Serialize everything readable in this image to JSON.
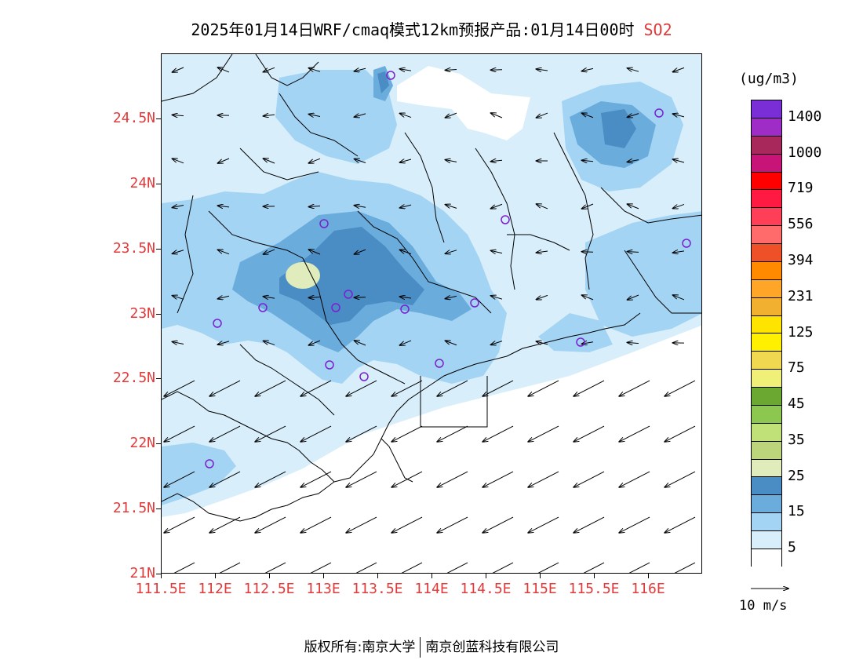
{
  "title": {
    "main": "2025年01月14日WRF/cmaq模式12km预报产品:01月14日00时",
    "species": "SO2",
    "species_color": "#e03a3a"
  },
  "map": {
    "lat_labels": [
      "24.5N",
      "24N",
      "23.5N",
      "23N",
      "22.5N",
      "22N",
      "21.5N",
      "21N"
    ],
    "lat_values": [
      24.5,
      24,
      23.5,
      23,
      22.5,
      22,
      21.5,
      21
    ],
    "lon_labels": [
      "111.5E",
      "112E",
      "112.5E",
      "113E",
      "113.5E",
      "114E",
      "114.5E",
      "115E",
      "115.5E",
      "116E"
    ],
    "lon_values": [
      111.5,
      112,
      112.5,
      113,
      113.5,
      114,
      114.5,
      115,
      115.5,
      116
    ],
    "extent": {
      "lon": [
        111.5,
        116.5
      ],
      "lat": [
        21,
        25
      ]
    },
    "label_color": "#e03a3a",
    "stations": [
      "marker",
      "marker",
      "marker",
      "marker",
      "marker",
      "marker",
      "marker",
      "marker",
      "marker",
      "marker",
      "marker",
      "marker",
      "marker",
      "marker",
      "marker",
      "marker"
    ],
    "station_color": "#7b1fd0"
  },
  "legend": {
    "unit": "(ug/m3)",
    "labels": [
      "1400",
      "1000",
      "719",
      "556",
      "394",
      "231",
      "125",
      "75",
      "45",
      "35",
      "25",
      "15",
      "5"
    ],
    "colors": [
      "#7a2ed6",
      "#a02cc8",
      "#a8285c",
      "#c81478",
      "#ff0000",
      "#ff1a44",
      "#ff3e58",
      "#ff6a6a",
      "#ee5028",
      "#ff8a00",
      "#ffa628",
      "#f2b030",
      "#ffe400",
      "#fff000",
      "#f0d850",
      "#f0f078",
      "#6aa832",
      "#8cc850",
      "#c0e078",
      "#bcd47a",
      "#e0ecbc",
      "#4a8cc4",
      "#6aacdc",
      "#a4d4f4",
      "#d8eefa",
      "#ffffff"
    ]
  },
  "wind_reference": {
    "label": "10 m/s"
  },
  "footer": {
    "left": "版权所有:南京大学",
    "right": "南京创蓝科技有限公司"
  }
}
